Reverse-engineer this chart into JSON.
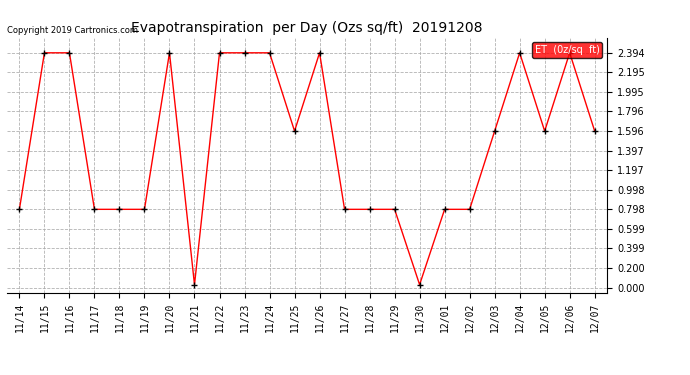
{
  "title": "Evapotranspiration  per Day (Ozs sq/ft)  20191208",
  "copyright": "Copyright 2019 Cartronics.com",
  "legend_label": "ET  (0z/sq  ft)",
  "x_labels": [
    "11/14",
    "11/15",
    "11/16",
    "11/17",
    "11/18",
    "11/19",
    "11/20",
    "11/21",
    "11/22",
    "11/23",
    "11/24",
    "11/25",
    "11/26",
    "11/27",
    "11/28",
    "11/29",
    "11/30",
    "12/01",
    "12/02",
    "12/03",
    "12/04",
    "12/05",
    "12/06",
    "12/07"
  ],
  "y_values": [
    0.798,
    2.394,
    2.394,
    0.798,
    0.798,
    0.798,
    2.394,
    0.03,
    2.394,
    2.394,
    2.394,
    1.596,
    2.394,
    0.798,
    0.798,
    0.798,
    0.03,
    0.798,
    0.798,
    1.596,
    2.394,
    1.596,
    2.394,
    1.596
  ],
  "y_ticks": [
    0.0,
    0.2,
    0.399,
    0.599,
    0.798,
    0.998,
    1.197,
    1.397,
    1.596,
    1.796,
    1.995,
    2.195,
    2.394
  ],
  "line_color": "#ff0000",
  "marker_color": "#000000",
  "background_color": "#ffffff",
  "grid_color": "#aaaaaa",
  "legend_bg": "#ff0000",
  "legend_text_color": "#ffffff",
  "title_fontsize": 10,
  "tick_fontsize": 7,
  "copyright_fontsize": 6,
  "legend_fontsize": 7,
  "ylim": [
    -0.05,
    2.55
  ]
}
